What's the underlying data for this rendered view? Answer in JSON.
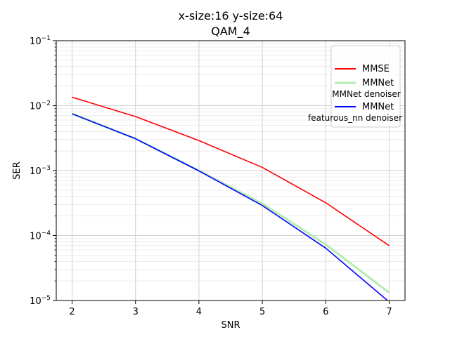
{
  "chart_data": {
    "type": "line",
    "title": "x-size:16 y-size:64",
    "subtitle": "QAM_4",
    "xlabel": "SNR",
    "ylabel": "SER",
    "x": [
      2,
      3,
      4,
      5,
      6,
      7
    ],
    "xlim": [
      1.75,
      7.25
    ],
    "ylim": [
      1e-05,
      0.1
    ],
    "yscale": "log",
    "xticks": [
      "2",
      "3",
      "4",
      "5",
      "6",
      "7"
    ],
    "yticks": [
      {
        "value": 1e-05,
        "base": "10",
        "exp": "−5"
      },
      {
        "value": 0.0001,
        "base": "10",
        "exp": "−4"
      },
      {
        "value": 0.001,
        "base": "10",
        "exp": "−3"
      },
      {
        "value": 0.01,
        "base": "10",
        "exp": "−2"
      },
      {
        "value": 0.1,
        "base": "10",
        "exp": "−1"
      }
    ],
    "grid": true,
    "legend_position": "top-right",
    "series": [
      {
        "name": "MMSE",
        "color": "#ff0000",
        "values": [
          0.0135,
          0.0068,
          0.0029,
          0.00112,
          0.00032,
          7e-05
        ]
      },
      {
        "name": "MMNet",
        "name_line2": "MMNet denoiser",
        "color": "#b3ecb3",
        "values": [
          0.0075,
          0.0031,
          0.001,
          0.00031,
          7.3e-05,
          1.32e-05
        ]
      },
      {
        "name": "MMNet",
        "name_line2": "featurous_nn denoiser",
        "color": "#0000ff",
        "values": [
          0.0075,
          0.0031,
          0.00099,
          0.00029,
          6.4e-05,
          9.5e-06
        ]
      }
    ]
  }
}
